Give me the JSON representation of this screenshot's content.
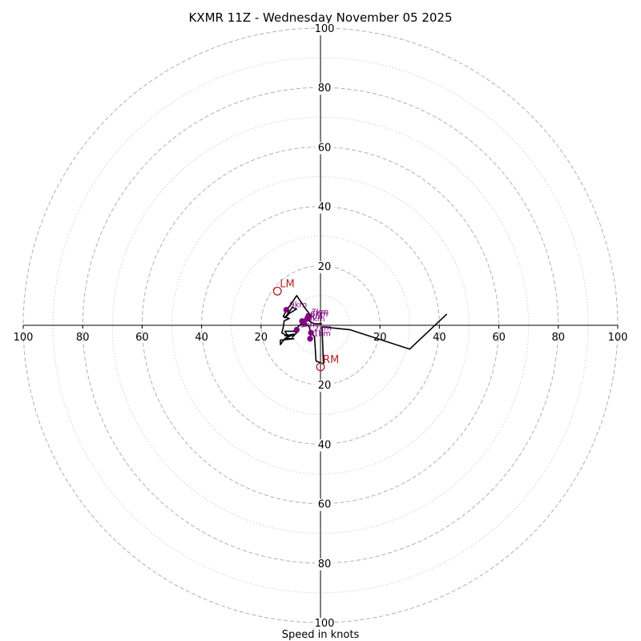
{
  "chart_data": {
    "type": "hodograph",
    "title": "KXMR 11Z - Wednesday November 05 2025",
    "xlabel": "Speed in knots",
    "axis_range": [
      -100,
      100
    ],
    "major_rings": [
      20,
      40,
      60,
      80,
      100
    ],
    "minor_rings": [
      10,
      30,
      50,
      70,
      90
    ],
    "tick_labels": {
      "x_left": [
        "100",
        "80",
        "60",
        "40",
        "20"
      ],
      "x_right": [
        "20",
        "40",
        "60",
        "80",
        "100"
      ],
      "y_up": [
        "20",
        "40",
        "60",
        "80",
        "100"
      ],
      "y_down": [
        "20",
        "40",
        "60",
        "80",
        "100"
      ]
    },
    "grid": true,
    "colors": {
      "trace": "#000000",
      "markers": "#800080",
      "storm_motion": "#b22222",
      "grid": "#b0b0b0"
    },
    "series": [
      {
        "points": [
          [
            42.5,
            3.8
          ],
          [
            30,
            -8
          ],
          [
            10,
            -1.5
          ],
          [
            0.5,
            -0.5
          ],
          [
            1,
            -13
          ],
          [
            -1.5,
            -12
          ],
          [
            -2,
            -4
          ],
          [
            -3.5,
            -1.5
          ],
          [
            -4,
            0
          ],
          [
            -5,
            0
          ],
          [
            -6,
            1
          ],
          [
            -9,
            -2
          ],
          [
            -8,
            -2.5
          ],
          [
            -9,
            -3.5
          ],
          [
            -9.5,
            -4
          ],
          [
            -7.5,
            -2
          ],
          [
            -12,
            -2
          ],
          [
            -11,
            -3.5
          ],
          [
            -9,
            -3.2
          ],
          [
            -12,
            -3.5
          ],
          [
            -9,
            -3
          ],
          [
            -10,
            -3.5
          ],
          [
            -12,
            -4.5
          ],
          [
            -9,
            -4.5
          ],
          [
            -13.5,
            -5
          ],
          [
            -13.5,
            -6.5
          ],
          [
            -12,
            -4.5
          ],
          [
            -11,
            -3.8
          ],
          [
            -13,
            -2.5
          ],
          [
            -12.5,
            -0.5
          ],
          [
            -12.2,
            1.5
          ],
          [
            -10.5,
            2.3
          ],
          [
            -12.5,
            3
          ],
          [
            -12,
            2.5
          ],
          [
            -9.5,
            6
          ],
          [
            -8,
            5.5
          ],
          [
            -10.5,
            4
          ],
          [
            -11,
            3.5
          ],
          [
            -11.5,
            3
          ],
          [
            -12,
            2.5
          ],
          [
            -12.5,
            3
          ],
          [
            -11.5,
            5
          ],
          [
            -10,
            7
          ],
          [
            -8,
            10
          ],
          [
            -5,
            5.5
          ],
          [
            -3,
            3
          ],
          [
            -4,
            2
          ],
          [
            -3.5,
            1.2
          ],
          [
            -2,
            0.5
          ],
          [
            0.5,
            0.5
          ]
        ]
      }
    ],
    "height_markers": [
      {
        "label": "1km",
        "u": -3.5,
        "v": -4.5
      },
      {
        "label": "2km",
        "u": -3.2,
        "v": -2.5
      },
      {
        "label": "3km",
        "u": -8,
        "v": -1.5
      },
      {
        "label": "4km",
        "u": -5.5,
        "v": 0.5
      },
      {
        "label": "5km",
        "u": -6.2,
        "v": 1.4
      },
      {
        "label": "6km",
        "u": -4.5,
        "v": 2.2
      },
      {
        "label": "7km",
        "u": -4.2,
        "v": 2.8
      },
      {
        "label": "9km",
        "u": -11.5,
        "v": 5.2
      }
    ],
    "storm_motion": [
      {
        "label": "LM",
        "u": -14.5,
        "v": 11.5
      },
      {
        "label": "RM",
        "u": 0,
        "v": -14
      }
    ]
  }
}
